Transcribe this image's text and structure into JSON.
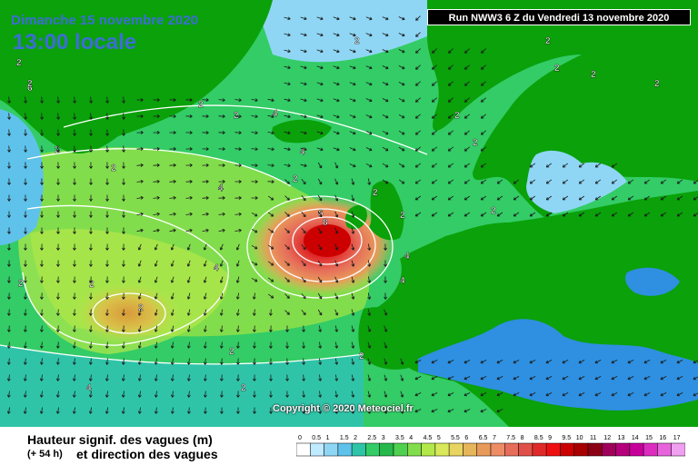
{
  "header": {
    "date_label": "Dimanche 15 novembre 2020",
    "time_label": "13:00 locale",
    "run_label": "Run NWW3 6 Z du Vendredi 13 novembre 2020"
  },
  "map": {
    "copyright": "Copyright © 2020 Meteociel.fr",
    "contour_labels": [
      "2",
      "4",
      "6",
      "8",
      "2",
      "4",
      "2",
      "4",
      "2",
      "4",
      "6",
      "4",
      "2",
      "2",
      "2",
      "2",
      "2",
      "4",
      "4",
      "2",
      "2",
      "2",
      "2",
      "2",
      "2",
      "2",
      "2",
      "2",
      "4",
      "2",
      "2",
      "2",
      "2",
      "2"
    ]
  },
  "legend": {
    "title": "Hauteur signif. des vagues (m)",
    "lead_time": "(+ 54 h)",
    "subtitle": "et direction des vagues",
    "scale": [
      {
        "label": "0",
        "color": "#ffffff"
      },
      {
        "label": "0.5",
        "color": "#bfeaff"
      },
      {
        "label": "1",
        "color": "#8fd6f5"
      },
      {
        "label": "1.5",
        "color": "#5ec2ea"
      },
      {
        "label": "2",
        "color": "#2fc4a8"
      },
      {
        "label": "2.5",
        "color": "#33cc66"
      },
      {
        "label": "3",
        "color": "#26b84a"
      },
      {
        "label": "3.5",
        "color": "#4fd04f"
      },
      {
        "label": "4",
        "color": "#82dd4c"
      },
      {
        "label": "4.5",
        "color": "#b3e84a"
      },
      {
        "label": "5",
        "color": "#d9e85a"
      },
      {
        "label": "5.5",
        "color": "#e8d460"
      },
      {
        "label": "6",
        "color": "#e6b65a"
      },
      {
        "label": "6.5",
        "color": "#e89a5a"
      },
      {
        "label": "7",
        "color": "#ee8c66"
      },
      {
        "label": "7.5",
        "color": "#e66d5a"
      },
      {
        "label": "8",
        "color": "#e05048"
      },
      {
        "label": "8.5",
        "color": "#e02a2a"
      },
      {
        "label": "9",
        "color": "#ee1010"
      },
      {
        "label": "9.5",
        "color": "#cc0000"
      },
      {
        "label": "10",
        "color": "#a80000"
      },
      {
        "label": "11",
        "color": "#8c0016"
      },
      {
        "label": "12",
        "color": "#a0005a"
      },
      {
        "label": "13",
        "color": "#b4007a"
      },
      {
        "label": "14",
        "color": "#c8009a"
      },
      {
        "label": "15",
        "color": "#dc2cc0"
      },
      {
        "label": "16",
        "color": "#e864dc"
      },
      {
        "label": "17",
        "color": "#f0a0f0"
      }
    ]
  },
  "colors": {
    "land": "#0aa10a",
    "sea_calm": "#8fd6f5",
    "sea_low": "#2fc4a8",
    "sea_mid": "#33cc66",
    "sea_moderate": "#82dd4c",
    "sea_high": "#e6b65a",
    "sea_storm": "#e02a2a",
    "text_blue": "#3d6dd6"
  }
}
